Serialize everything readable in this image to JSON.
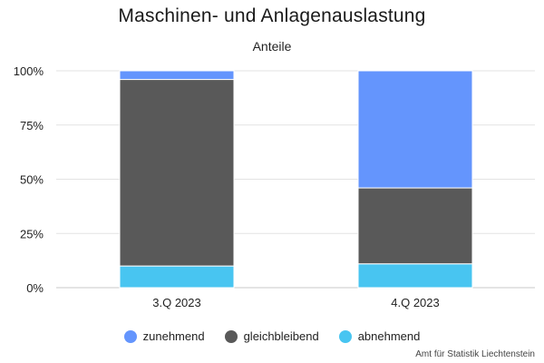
{
  "chart_data": {
    "type": "bar",
    "stacked": true,
    "title": "Maschinen- und Anlagenauslastung",
    "subtitle": "Anteile",
    "categories": [
      "3.Q 2023",
      "4.Q 2023"
    ],
    "series": [
      {
        "name": "zunehmend",
        "color": "#6495fd",
        "values": [
          4,
          54
        ]
      },
      {
        "name": "gleichbleibend",
        "color": "#595959",
        "values": [
          86,
          35
        ]
      },
      {
        "name": "abnehmend",
        "color": "#48c5f1",
        "values": [
          10,
          11
        ]
      }
    ],
    "stack_order_bottom_to_top": [
      "abnehmend",
      "gleichbleibend",
      "zunehmend"
    ],
    "ylim": [
      0,
      100
    ],
    "yticks": [
      "0%",
      "25%",
      "50%",
      "75%",
      "100%"
    ],
    "ytick_values": [
      0,
      25,
      50,
      75,
      100
    ],
    "grid": true,
    "legend_position": "bottom"
  },
  "credit": "Amt für Statistik Liechtenstein"
}
